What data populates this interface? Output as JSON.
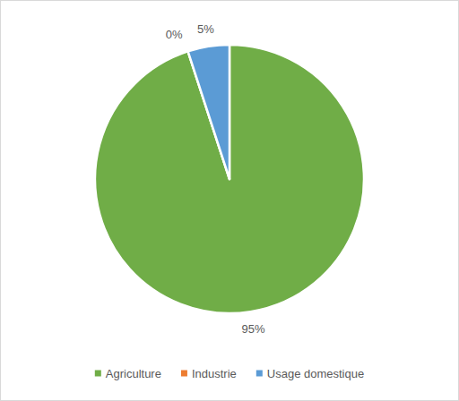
{
  "chart_data": {
    "type": "pie",
    "categories": [
      "Agriculture",
      "Industrie",
      "Usage domestique"
    ],
    "values": [
      95,
      0,
      5
    ],
    "value_labels": [
      "95%",
      "0%",
      "5%"
    ],
    "colors": [
      "#70ad47",
      "#ed7d31",
      "#5b9bd5"
    ],
    "data_labels": true,
    "legend": "bottom"
  }
}
